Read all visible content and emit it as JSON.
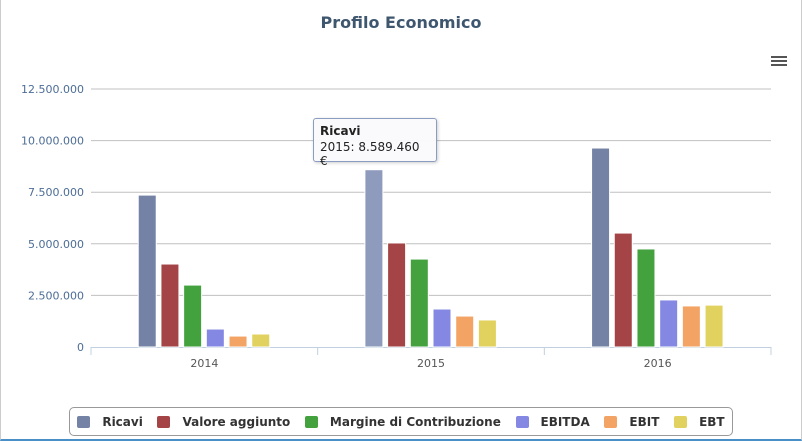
{
  "chart_data": {
    "type": "bar",
    "title": "Profilo Economico",
    "categories": [
      "2014",
      "2015",
      "2016"
    ],
    "ylim": [
      0,
      12500000
    ],
    "yticks": [
      "0",
      "2.500.000",
      "5.000.000",
      "7.500.000",
      "10.000.000",
      "12.500.000"
    ],
    "grid": true,
    "legend": "bottom",
    "series": [
      {
        "name": "Ricavi",
        "color": "#7483a5",
        "values": [
          7360000,
          8589460,
          9640000
        ]
      },
      {
        "name": "Valore aggiunto",
        "color": "#a44446",
        "values": [
          4020000,
          5040000,
          5520000
        ]
      },
      {
        "name": "Margine di Contribuzione",
        "color": "#43a23e",
        "values": [
          3000000,
          4260000,
          4750000
        ]
      },
      {
        "name": "EBITDA",
        "color": "#8588e3",
        "values": [
          870000,
          1840000,
          2280000
        ]
      },
      {
        "name": "EBIT",
        "color": "#f3a465",
        "values": [
          530000,
          1500000,
          1990000
        ]
      },
      {
        "name": "EBT",
        "color": "#e1d25f",
        "values": [
          630000,
          1310000,
          2030000
        ]
      }
    ],
    "tooltip": {
      "series": "Ricavi",
      "text": "2015: 8.589.460 €"
    }
  },
  "menu_icon": "hamburger-menu-icon"
}
